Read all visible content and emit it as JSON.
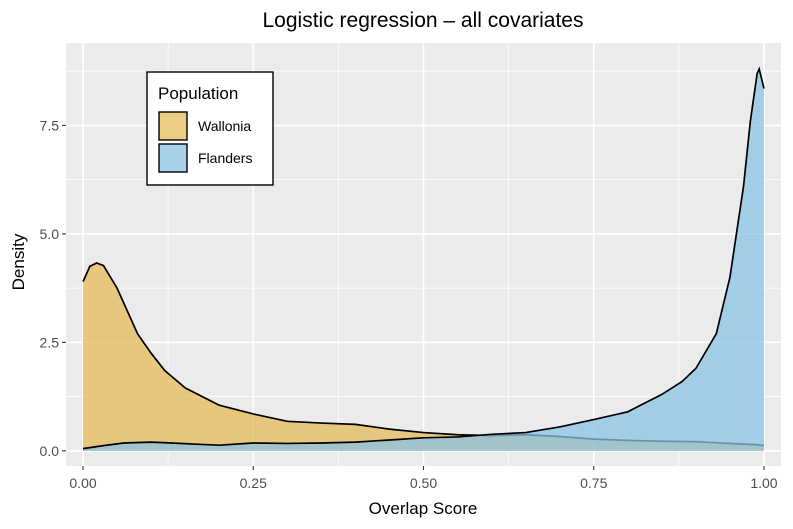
{
  "chart_data": {
    "type": "area",
    "title": "Logistic regression – all covariates",
    "xlabel": "Overlap Score",
    "ylabel": "Density",
    "xlim": [
      -0.025,
      1.025
    ],
    "ylim": [
      -0.35,
      9.4
    ],
    "x_ticks": [
      0.0,
      0.25,
      0.5,
      0.75,
      1.0
    ],
    "x_tick_labels": [
      "0.00",
      "0.25",
      "0.50",
      "0.75",
      "1.00"
    ],
    "y_ticks": [
      0.0,
      2.5,
      5.0,
      7.5
    ],
    "y_tick_labels": [
      "0.0",
      "2.5",
      "5.0",
      "7.5"
    ],
    "grid": true,
    "legend": {
      "title": "Population",
      "position": "top-left"
    },
    "series": [
      {
        "name": "Wallonia",
        "color": "#E5B95A",
        "x": [
          0.0,
          0.01,
          0.02,
          0.03,
          0.05,
          0.08,
          0.1,
          0.12,
          0.15,
          0.2,
          0.25,
          0.3,
          0.35,
          0.4,
          0.45,
          0.5,
          0.55,
          0.6,
          0.65,
          0.7,
          0.75,
          0.8,
          0.85,
          0.9,
          0.95,
          0.99,
          1.0
        ],
        "y": [
          3.9,
          4.25,
          4.33,
          4.27,
          3.75,
          2.7,
          2.25,
          1.85,
          1.45,
          1.05,
          0.85,
          0.68,
          0.64,
          0.61,
          0.5,
          0.42,
          0.37,
          0.35,
          0.37,
          0.33,
          0.27,
          0.24,
          0.22,
          0.21,
          0.17,
          0.14,
          0.12
        ]
      },
      {
        "name": "Flanders",
        "color": "#89C3E6",
        "x": [
          0.0,
          0.03,
          0.06,
          0.1,
          0.13,
          0.17,
          0.2,
          0.25,
          0.3,
          0.35,
          0.4,
          0.45,
          0.5,
          0.55,
          0.6,
          0.65,
          0.7,
          0.75,
          0.8,
          0.85,
          0.88,
          0.9,
          0.93,
          0.95,
          0.97,
          0.98,
          0.99,
          0.993,
          1.0
        ],
        "y": [
          0.05,
          0.12,
          0.18,
          0.2,
          0.18,
          0.15,
          0.13,
          0.18,
          0.17,
          0.18,
          0.2,
          0.25,
          0.3,
          0.32,
          0.38,
          0.42,
          0.55,
          0.72,
          0.9,
          1.3,
          1.6,
          1.9,
          2.7,
          4.0,
          6.1,
          7.6,
          8.7,
          8.8,
          8.35
        ]
      }
    ]
  }
}
